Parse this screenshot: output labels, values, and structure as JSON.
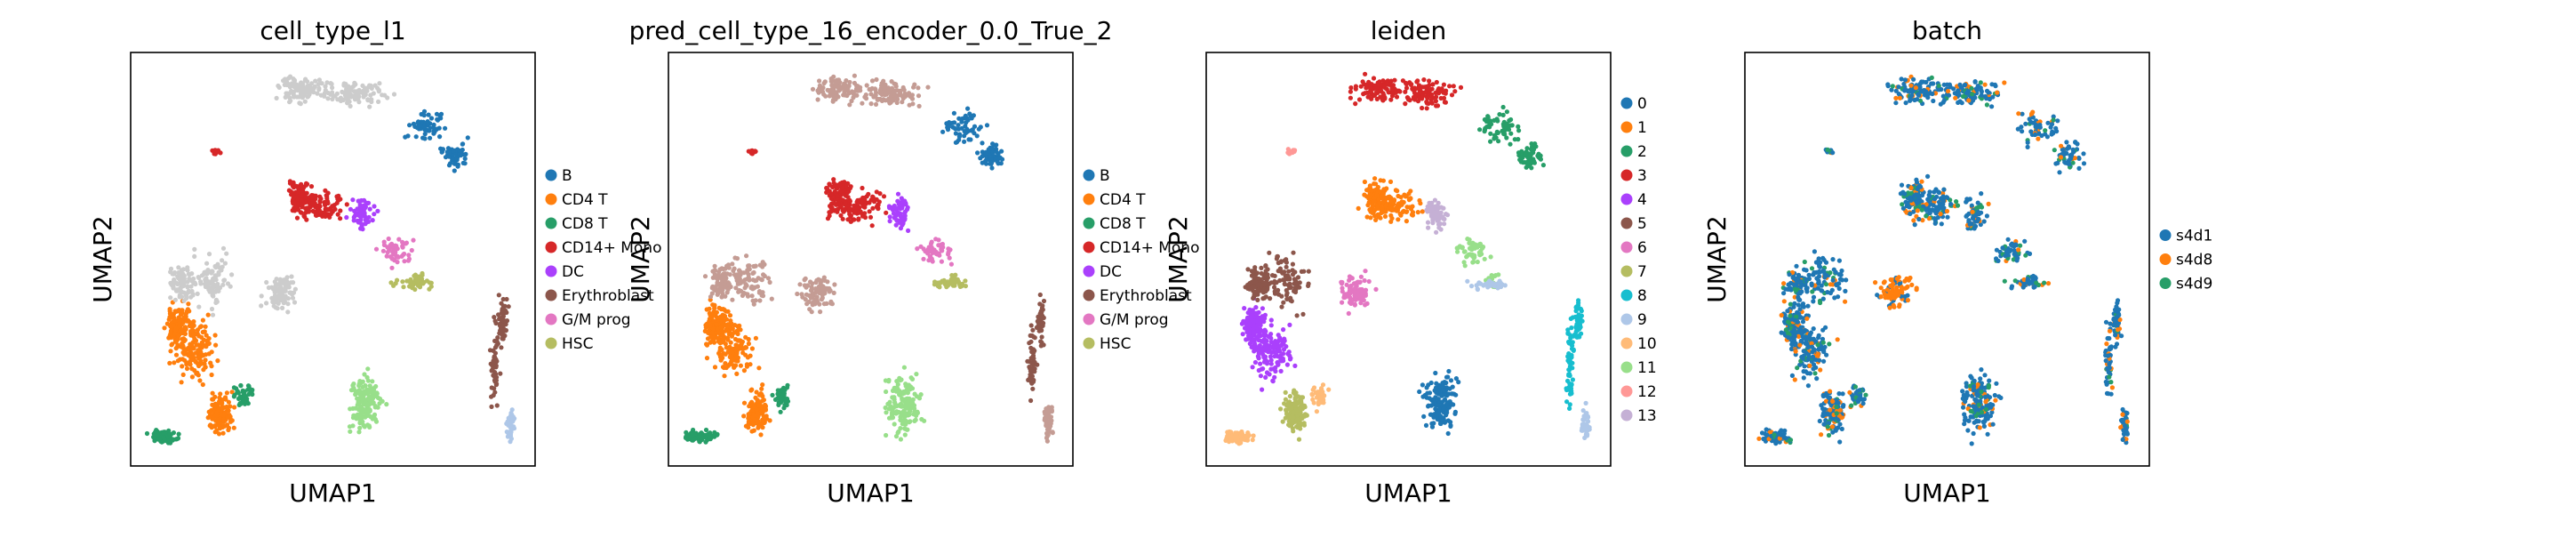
{
  "chart_data": [
    {
      "type": "scatter",
      "title": "cell_type_l1",
      "xlabel": "UMAP1",
      "ylabel": "UMAP2",
      "legend_placement": "right",
      "legend": [
        {
          "label": "B",
          "color": "#1f77b4"
        },
        {
          "label": "CD4 T",
          "color": "#ff7f0e"
        },
        {
          "label": "CD8 T",
          "color": "#279e68"
        },
        {
          "label": "CD14+ Mono",
          "color": "#d62728"
        },
        {
          "label": "DC",
          "color": "#aa40fc"
        },
        {
          "label": "Erythroblast",
          "color": "#8c564b"
        },
        {
          "label": "G/M prog",
          "color": "#e377c2"
        },
        {
          "label": "HSC",
          "color": "#b5bd61"
        }
      ]
    },
    {
      "type": "scatter",
      "title": "pred_cell_type_16_encoder_0.0_True_2",
      "xlabel": "UMAP1",
      "ylabel": "UMAP2",
      "legend_placement": "right",
      "legend": [
        {
          "label": "B",
          "color": "#1f77b4"
        },
        {
          "label": "CD4 T",
          "color": "#ff7f0e"
        },
        {
          "label": "CD8 T",
          "color": "#279e68"
        },
        {
          "label": "CD14+ Mono",
          "color": "#d62728"
        },
        {
          "label": "DC",
          "color": "#aa40fc"
        },
        {
          "label": "Erythroblast",
          "color": "#8c564b"
        },
        {
          "label": "G/M prog",
          "color": "#e377c2"
        },
        {
          "label": "HSC",
          "color": "#b5bd61"
        }
      ]
    },
    {
      "type": "scatter",
      "title": "leiden",
      "xlabel": "UMAP1",
      "ylabel": "UMAP2",
      "legend_placement": "right",
      "legend": [
        {
          "label": "0",
          "color": "#1f77b4"
        },
        {
          "label": "1",
          "color": "#ff7f0e"
        },
        {
          "label": "2",
          "color": "#279e68"
        },
        {
          "label": "3",
          "color": "#d62728"
        },
        {
          "label": "4",
          "color": "#aa40fc"
        },
        {
          "label": "5",
          "color": "#8c564b"
        },
        {
          "label": "6",
          "color": "#e377c2"
        },
        {
          "label": "7",
          "color": "#b5bd61"
        },
        {
          "label": "8",
          "color": "#17becf"
        },
        {
          "label": "9",
          "color": "#aec7e8"
        },
        {
          "label": "10",
          "color": "#ffbb78"
        },
        {
          "label": "11",
          "color": "#98df8a"
        },
        {
          "label": "12",
          "color": "#ff9896"
        },
        {
          "label": "13",
          "color": "#c5b0d5"
        }
      ]
    },
    {
      "type": "scatter",
      "title": "batch",
      "xlabel": "UMAP1",
      "ylabel": "UMAP2",
      "legend_placement": "right",
      "legend": [
        {
          "label": "s4d1",
          "color": "#1f77b4"
        },
        {
          "label": "s4d8",
          "color": "#ff7f0e"
        },
        {
          "label": "s4d9",
          "color": "#279e68"
        }
      ]
    }
  ]
}
